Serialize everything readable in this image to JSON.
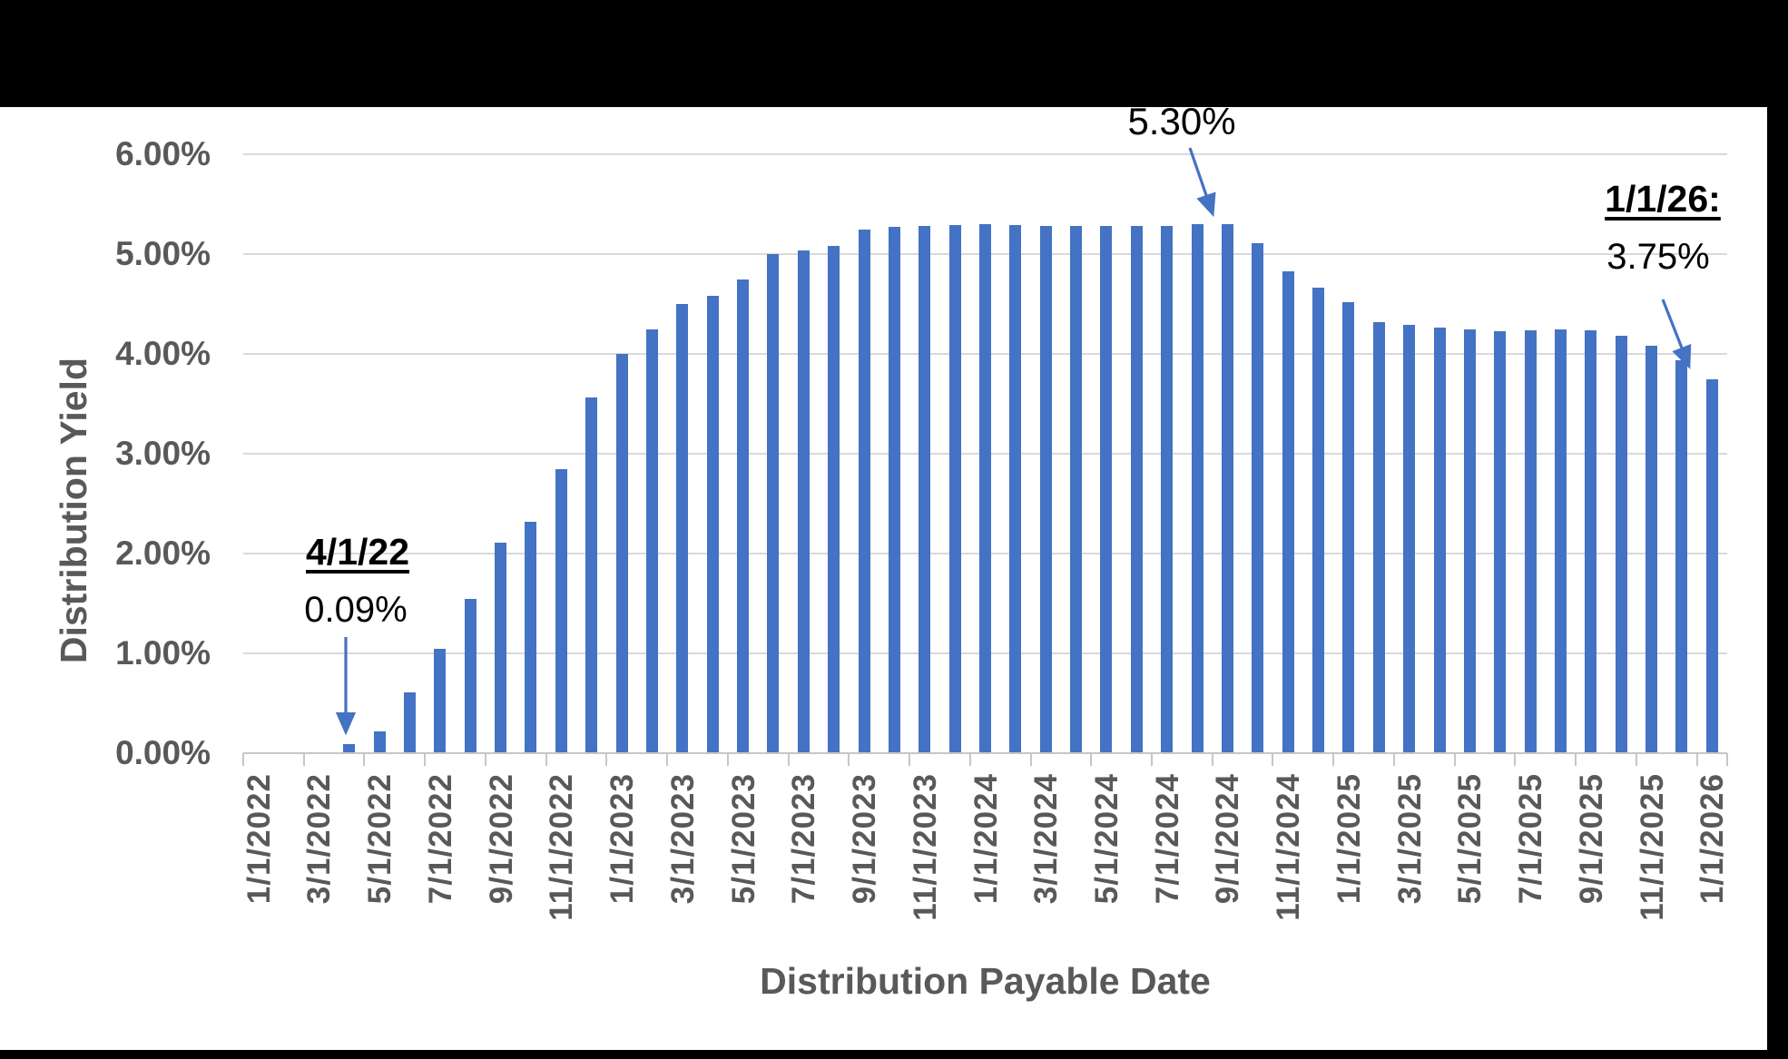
{
  "chart_data": {
    "type": "bar",
    "title": "",
    "xlabel": "Distribution Payable Date",
    "ylabel": "Distribution Yield",
    "ylim": [
      0,
      6
    ],
    "grid": true,
    "legend": "none",
    "y_tick_labels": [
      "0.00%",
      "1.00%",
      "2.00%",
      "3.00%",
      "4.00%",
      "5.00%",
      "6.00%"
    ],
    "x_tick_labels": [
      "1/1/2022",
      "3/1/2022",
      "5/1/2022",
      "7/1/2022",
      "9/1/2022",
      "11/1/2022",
      "1/1/2023",
      "3/1/2023",
      "5/1/2023",
      "7/1/2023",
      "9/1/2023",
      "11/1/2023",
      "1/1/2024",
      "3/1/2024",
      "5/1/2024",
      "7/1/2024",
      "9/1/2024",
      "11/1/2024",
      "1/1/2025",
      "3/1/2025",
      "5/1/2025",
      "7/1/2025",
      "9/1/2025",
      "11/1/2025",
      "1/1/2026"
    ],
    "categories": [
      "1/1/2022",
      "2/1/2022",
      "3/1/2022",
      "4/1/2022",
      "5/1/2022",
      "6/1/2022",
      "7/1/2022",
      "8/1/2022",
      "9/1/2022",
      "10/1/2022",
      "11/1/2022",
      "12/1/2022",
      "1/1/2023",
      "2/1/2023",
      "3/1/2023",
      "4/1/2023",
      "5/1/2023",
      "6/1/2023",
      "7/1/2023",
      "8/1/2023",
      "9/1/2023",
      "10/1/2023",
      "11/1/2023",
      "12/1/2023",
      "1/1/2024",
      "2/1/2024",
      "3/1/2024",
      "4/1/2024",
      "5/1/2024",
      "6/1/2024",
      "7/1/2024",
      "8/1/2024",
      "9/1/2024",
      "10/1/2024",
      "11/1/2024",
      "12/1/2024",
      "1/1/2025",
      "2/1/2025",
      "3/1/2025",
      "4/1/2025",
      "5/1/2025",
      "6/1/2025",
      "7/1/2025",
      "8/1/2025",
      "9/1/2025",
      "10/1/2025",
      "11/1/2025",
      "12/1/2025",
      "1/1/2026"
    ],
    "values": [
      0,
      0,
      0,
      0.09,
      0.22,
      0.61,
      1.05,
      1.55,
      2.11,
      2.32,
      2.85,
      3.56,
      4.0,
      4.25,
      4.5,
      4.58,
      4.75,
      5.0,
      5.04,
      5.08,
      5.25,
      5.27,
      5.28,
      5.29,
      5.3,
      5.29,
      5.28,
      5.28,
      5.28,
      5.28,
      5.28,
      5.3,
      5.3,
      5.11,
      4.83,
      4.66,
      4.52,
      4.32,
      4.29,
      4.26,
      4.25,
      4.23,
      4.24,
      4.25,
      4.24,
      4.18,
      4.08,
      3.94,
      3.75
    ]
  },
  "annotations": {
    "first_distribution": {
      "date_label": "4/1/22",
      "value_label": "0.09%",
      "target_category": "4/1/2022"
    },
    "peak": {
      "value_label": "5.30%",
      "target_category": "9/1/2024"
    },
    "final": {
      "date_label": "1/1/26:",
      "value_label": "3.75%",
      "target_category": "1/1/2026"
    }
  },
  "colors": {
    "bar": "#4472C4",
    "arrow": "#4472C4",
    "gridline": "#D9D9D9",
    "axis_line": "#C6C6C6",
    "axis_text": "#595959",
    "annotation_text": "#000000",
    "background": "#FFFFFF",
    "mask": "#000000"
  }
}
